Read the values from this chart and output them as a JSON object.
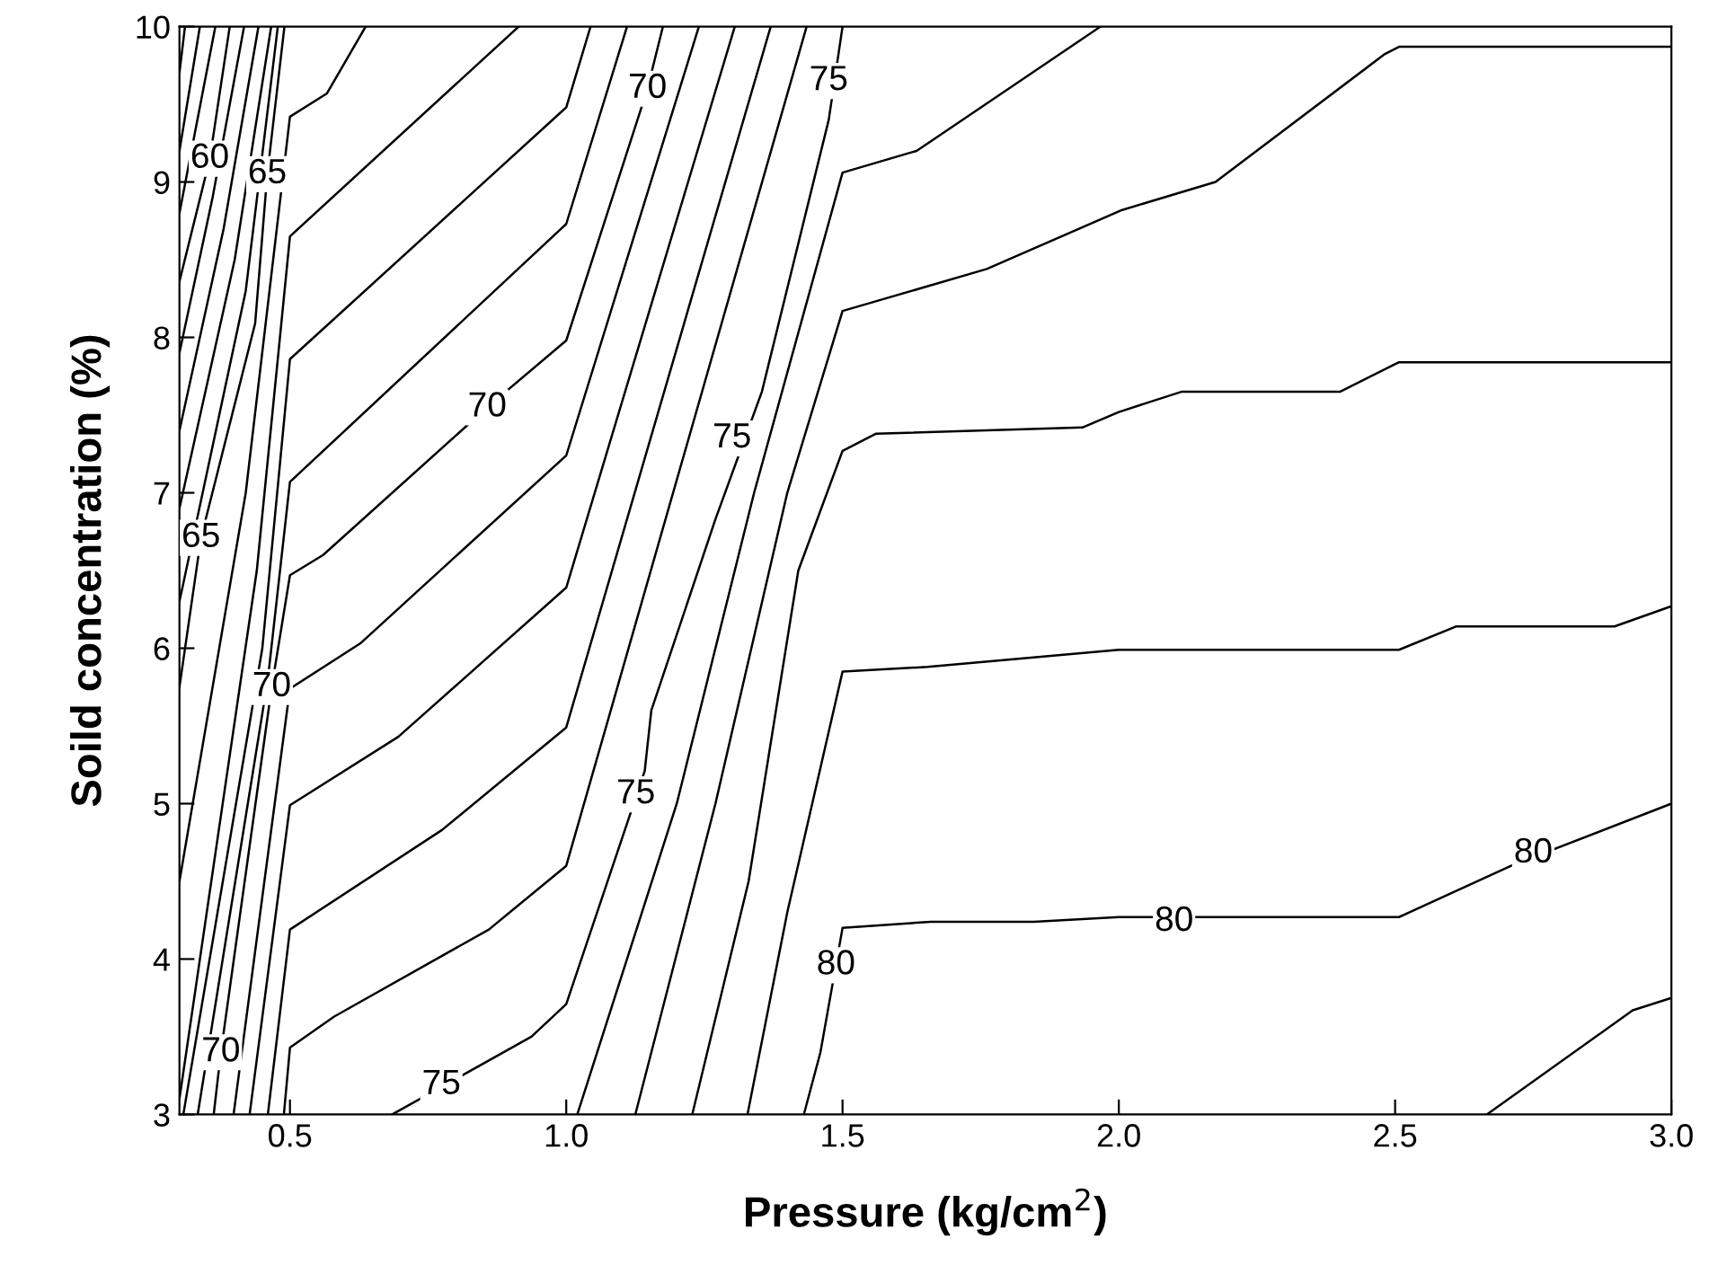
{
  "chart_data": {
    "type": "line",
    "xlabel": "Pressure (kg/cm$^{2}$)",
    "ylabel": "Soild concentration (%)",
    "xlim": [
      0.3,
      3.0
    ],
    "xticks": [
      {
        "value": 0.5,
        "label": "0.5"
      },
      {
        "value": 1.0,
        "label": "1.0"
      },
      {
        "value": 1.5,
        "label": "1.5"
      },
      {
        "value": 2.0,
        "label": "2.0"
      },
      {
        "value": 2.5,
        "label": "2.5"
      },
      {
        "value": 3.0,
        "label": "3.0"
      }
    ],
    "ylim": [
      3,
      10
    ],
    "yticks": [
      3,
      4,
      5,
      6,
      7,
      8,
      9,
      10
    ],
    "grid": false,
    "legend": false,
    "series": [
      {
        "color": "#000000",
        "x": [
          0.3,
          0.31
        ],
        "values": [
          9.7,
          10
        ]
      },
      {
        "color": "#000000",
        "x": [
          0.3,
          0.337
        ],
        "values": [
          9.2,
          10
        ]
      },
      {
        "color": "#000000",
        "x": [
          0.3,
          0.365
        ],
        "values": [
          8.8,
          10
        ]
      },
      {
        "color": "#000000",
        "x": [
          0.3,
          0.355,
          0.391
        ],
        "values": [
          8.36,
          9.15,
          10
        ]
      },
      {
        "color": "#000000",
        "x": [
          0.3,
          0.36,
          0.417
        ],
        "values": [
          7.9,
          8.9,
          10
        ]
      },
      {
        "color": "#000000",
        "x": [
          0.3,
          0.38,
          0.443
        ],
        "values": [
          7.4,
          8.7,
          10
        ]
      },
      {
        "color": "#000000",
        "x": [
          0.3,
          0.4,
          0.466
        ],
        "values": [
          6.9,
          8.5,
          10
        ]
      },
      {
        "color": "#000000",
        "x": [
          0.3,
          0.42,
          0.478
        ],
        "values": [
          6.3,
          8.3,
          10
        ]
      },
      {
        "color": "#000000",
        "x": [
          0.3,
          0.339,
          0.437,
          0.459,
          0.49
        ],
        "values": [
          5.75,
          6.71,
          8.09,
          9.05,
          10
        ]
      },
      {
        "color": "#000000",
        "x": [
          0.3,
          0.42,
          0.5,
          0.567,
          0.637
        ],
        "values": [
          4.5,
          7.0,
          9.42,
          9.57,
          10
        ]
      },
      {
        "color": "#000000",
        "x": [
          0.3,
          0.44,
          0.5,
          0.914
        ],
        "values": [
          3.1,
          6.5,
          8.65,
          10
        ]
      },
      {
        "color": "#000000",
        "x": [
          0.307,
          0.45,
          0.5,
          1.0,
          1.044
        ],
        "values": [
          3,
          6.0,
          7.86,
          9.48,
          10
        ]
      },
      {
        "color": "#000000",
        "x": [
          0.333,
          0.46,
          0.5,
          1.0,
          1.11
        ],
        "values": [
          3,
          5.8,
          7.07,
          8.73,
          10
        ]
      },
      {
        "color": "#000000",
        "x": [
          0.362,
          0.375,
          0.467,
          0.5,
          0.56,
          0.857,
          1.0,
          1.147,
          1.175
        ],
        "values": [
          3,
          3.4,
          5.75,
          6.47,
          6.6,
          7.55,
          7.98,
          9.6,
          10
        ]
      },
      {
        "color": "#000000",
        "x": [
          0.398,
          0.45,
          0.5,
          0.627,
          1.0,
          1.24
        ],
        "values": [
          3,
          4.4,
          5.74,
          6.03,
          7.24,
          10
        ]
      },
      {
        "color": "#000000",
        "x": [
          0.427,
          0.5,
          0.696,
          1.0,
          1.305
        ],
        "values": [
          3,
          4.99,
          5.43,
          6.39,
          10
        ]
      },
      {
        "color": "#000000",
        "x": [
          0.46,
          0.5,
          0.775,
          1.0,
          1.37
        ],
        "values": [
          3,
          4.19,
          4.83,
          5.49,
          10
        ]
      },
      {
        "color": "#000000",
        "x": [
          0.489,
          0.5,
          0.58,
          0.86,
          1.0,
          1.435
        ],
        "values": [
          3,
          3.43,
          3.63,
          4.19,
          4.6,
          10
        ]
      },
      {
        "color": "#000000",
        "x": [
          0.685,
          0.937,
          1.0,
          1.142,
          1.154,
          1.27,
          1.354,
          1.475,
          1.5
        ],
        "values": [
          3,
          3.5,
          3.71,
          5.21,
          5.6,
          6.83,
          7.65,
          9.4,
          10
        ]
      },
      {
        "color": "#000000",
        "x": [
          1.02,
          1.2,
          1.34,
          1.5,
          1.634,
          1.967
        ],
        "values": [
          3,
          5.0,
          7.0,
          9.06,
          9.2,
          10
        ]
      },
      {
        "color": "#000000",
        "x": [
          1.125,
          1.27,
          1.4,
          1.5,
          1.761,
          2.006,
          2.175,
          2.48,
          2.507,
          3.0
        ],
        "values": [
          3,
          5.0,
          7.0,
          8.17,
          8.44,
          8.82,
          9.0,
          9.82,
          9.87,
          9.87
        ]
      },
      {
        "color": "#000000",
        "x": [
          1.228,
          1.33,
          1.42,
          1.5,
          1.56,
          1.934,
          2.0,
          2.113,
          2.4,
          2.507,
          3.0
        ],
        "values": [
          3,
          4.5,
          6.5,
          7.27,
          7.38,
          7.42,
          7.52,
          7.65,
          7.65,
          7.84,
          7.84
        ]
      },
      {
        "color": "#000000",
        "x": [
          1.328,
          1.4,
          1.5,
          1.654,
          2.0,
          2.507,
          2.61,
          2.897,
          3.0
        ],
        "values": [
          3,
          4.3,
          5.85,
          5.88,
          5.99,
          5.99,
          6.14,
          6.14,
          6.27
        ]
      },
      {
        "color": "#000000",
        "x": [
          1.43,
          1.46,
          1.5,
          1.66,
          1.846,
          2.0,
          2.507,
          2.71,
          3.0
        ],
        "values": [
          3,
          3.4,
          4.2,
          4.24,
          4.24,
          4.27,
          4.27,
          4.6,
          5.0
        ]
      },
      {
        "color": "#000000",
        "x": [
          2.666,
          2.93,
          3.0
        ],
        "values": [
          3,
          3.67,
          3.75
        ]
      }
    ],
    "annotations": [
      {
        "text": "60",
        "x": 0.355,
        "y": 9.15
      },
      {
        "text": "65",
        "x": 0.459,
        "y": 9.05
      },
      {
        "text": "70",
        "x": 1.147,
        "y": 9.6
      },
      {
        "text": "70",
        "x": 0.857,
        "y": 7.55
      },
      {
        "text": "65",
        "x": 0.339,
        "y": 6.71
      },
      {
        "text": "70",
        "x": 0.467,
        "y": 5.75
      },
      {
        "text": "70",
        "x": 0.375,
        "y": 3.4
      },
      {
        "text": "75",
        "x": 0.774,
        "y": 3.19
      },
      {
        "text": "75",
        "x": 1.126,
        "y": 5.06
      },
      {
        "text": "75",
        "x": 1.475,
        "y": 9.65
      },
      {
        "text": "75",
        "x": 1.3,
        "y": 7.35
      },
      {
        "text": "80",
        "x": 1.488,
        "y": 3.96
      },
      {
        "text": "80",
        "x": 2.1,
        "y": 4.24
      },
      {
        "text": "80",
        "x": 2.75,
        "y": 4.68
      }
    ]
  }
}
